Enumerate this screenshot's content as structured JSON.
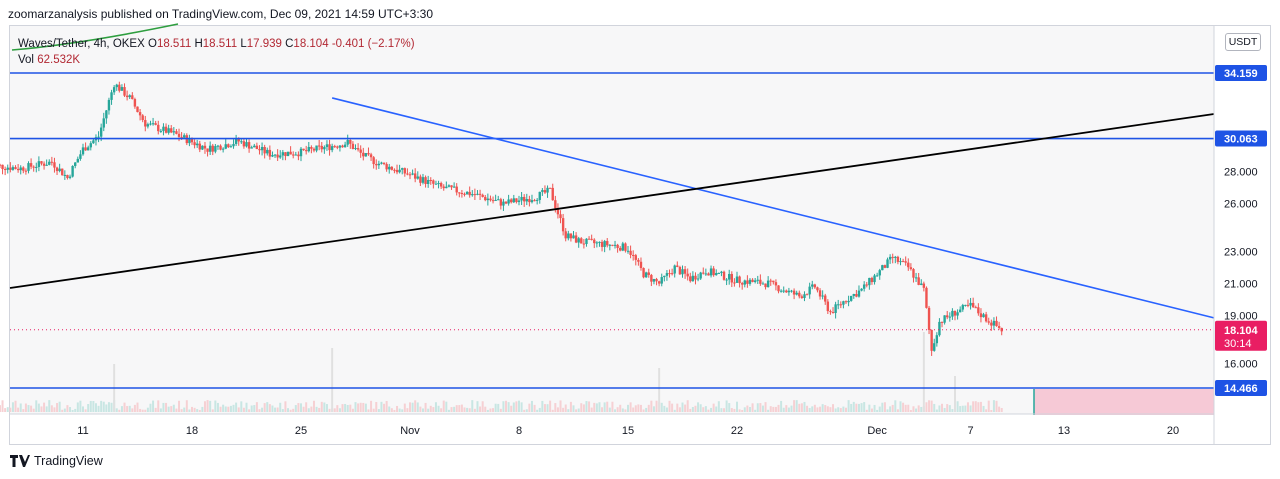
{
  "header": {
    "published": "zoomarzanalysis published on TradingView.com, Dec 09, 2021 14:59 UTC+3:30"
  },
  "legend": {
    "symbol": "Waves/Tether, 4h, OKEX",
    "open_label": "O",
    "open": "18.511",
    "high_label": "H",
    "high": "18.511",
    "low_label": "L",
    "low": "17.939",
    "close_label": "C",
    "close": "18.104",
    "change": "-0.401 (−2.17%)",
    "vol_label": "Vol",
    "vol": "62.532K"
  },
  "unit": "USDT",
  "footer": {
    "brand": "TradingView"
  },
  "colors": {
    "up": "#26a69a",
    "down": "#ef5350",
    "candle_body": "#2b2b3b",
    "hline": "#1e53e5",
    "trendline": "#2962ff",
    "support_line": "#000000",
    "price_label_bg": "#e91e63",
    "level_label_bg": "#1e53e5"
  },
  "chart_data": {
    "type": "line",
    "title": "Waves/Tether, 4h, OKEX",
    "ylabel": "USDT",
    "y_axis_ticks": [
      "28.000",
      "26.000",
      "23.000",
      "21.000",
      "19.000",
      "16.000"
    ],
    "x_axis_ticks": [
      "11",
      "18",
      "25",
      "Nov",
      "8",
      "15",
      "22",
      "Dec",
      "7",
      "13",
      "20"
    ],
    "horizontal_levels": [
      "34.159",
      "30.063",
      "14.466"
    ],
    "last_price": "18.104",
    "countdown": "30:14",
    "series": [
      {
        "values": [
          {
            "x": "Oct 5",
            "y": 28.4
          },
          {
            "x": "Oct 7",
            "y": 28.2
          },
          {
            "x": "Oct 9",
            "y": 28.6
          },
          {
            "x": "Oct 10",
            "y": 27.6
          },
          {
            "x": "Oct 11",
            "y": 29.4
          },
          {
            "x": "Oct 12",
            "y": 30.2
          },
          {
            "x": "Oct 13",
            "y": 33.5
          },
          {
            "x": "Oct 14",
            "y": 32.6
          },
          {
            "x": "Oct 15",
            "y": 31.0
          },
          {
            "x": "Oct 17",
            "y": 30.3
          },
          {
            "x": "Oct 19",
            "y": 29.4
          },
          {
            "x": "Oct 21",
            "y": 29.9
          },
          {
            "x": "Oct 23",
            "y": 29.1
          },
          {
            "x": "Oct 25",
            "y": 29.2
          },
          {
            "x": "Oct 27",
            "y": 29.6
          },
          {
            "x": "Oct 28",
            "y": 29.8
          },
          {
            "x": "Oct 29",
            "y": 29.0
          },
          {
            "x": "Oct 30",
            "y": 28.5
          },
          {
            "x": "Nov 1",
            "y": 27.8
          },
          {
            "x": "Nov 3",
            "y": 27.0
          },
          {
            "x": "Nov 5",
            "y": 26.6
          },
          {
            "x": "Nov 7",
            "y": 26.0
          },
          {
            "x": "Nov 9",
            "y": 26.4
          },
          {
            "x": "Nov 10",
            "y": 26.8
          },
          {
            "x": "Nov 11",
            "y": 24.0
          },
          {
            "x": "Nov 12",
            "y": 23.6
          },
          {
            "x": "Nov 14",
            "y": 23.4
          },
          {
            "x": "Nov 15",
            "y": 23.2
          },
          {
            "x": "Nov 16",
            "y": 21.6
          },
          {
            "x": "Nov 17",
            "y": 21.0
          },
          {
            "x": "Nov 18",
            "y": 22.0
          },
          {
            "x": "Nov 19",
            "y": 21.3
          },
          {
            "x": "Nov 20",
            "y": 21.8
          },
          {
            "x": "Nov 22",
            "y": 21.2
          },
          {
            "x": "Nov 24",
            "y": 21.0
          },
          {
            "x": "Nov 26",
            "y": 20.2
          },
          {
            "x": "Nov 27",
            "y": 20.8
          },
          {
            "x": "Nov 28",
            "y": 19.2
          },
          {
            "x": "Nov 29",
            "y": 20.0
          },
          {
            "x": "Nov 30",
            "y": 20.6
          },
          {
            "x": "Dec 1",
            "y": 21.6
          },
          {
            "x": "Dec 2",
            "y": 22.6
          },
          {
            "x": "Dec 3",
            "y": 22.0
          },
          {
            "x": "Dec 4",
            "y": 20.6
          },
          {
            "x": "Dec 4b",
            "y": 16.8
          },
          {
            "x": "Dec 5",
            "y": 18.6
          },
          {
            "x": "Dec 6",
            "y": 19.2
          },
          {
            "x": "Dec 7",
            "y": 19.6
          },
          {
            "x": "Dec 8",
            "y": 18.8
          },
          {
            "x": "Dec 9",
            "y": 18.1
          }
        ]
      }
    ],
    "volume": [
      {
        "x": "Oct 13",
        "y": 60
      },
      {
        "x": "Oct 27",
        "y": 80
      },
      {
        "x": "Nov 17",
        "y": 55
      },
      {
        "x": "Dec 4",
        "y": 100
      },
      {
        "x": "Dec 6",
        "y": 45
      }
    ]
  }
}
